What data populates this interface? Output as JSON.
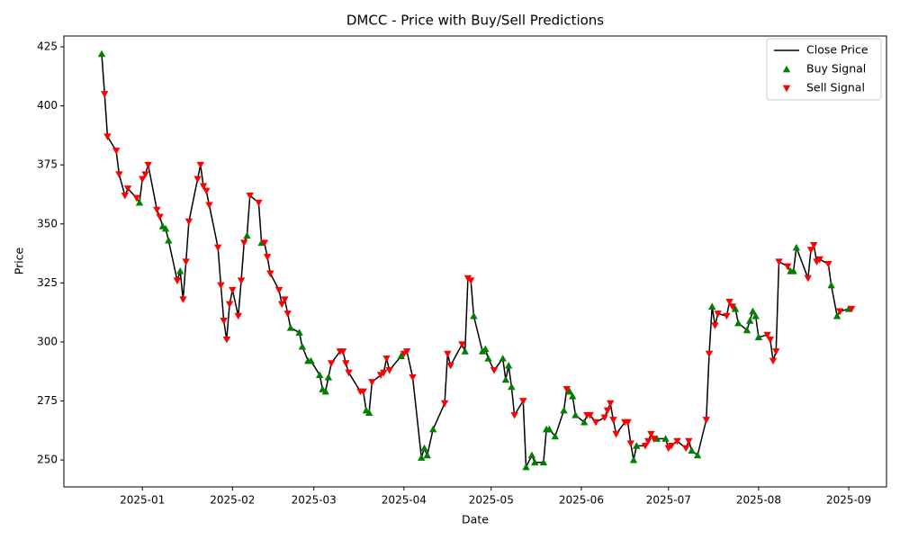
{
  "chart_data": {
    "type": "line",
    "title": "DMCC - Price with Buy/Sell Predictions",
    "x_label": "Date",
    "y_label": "Price",
    "x": [
      "2024-12-18",
      "2024-12-19",
      "2024-12-20",
      "2024-12-23",
      "2024-12-24",
      "2024-12-26",
      "2024-12-27",
      "2024-12-30",
      "2024-12-31",
      "2025-01-01",
      "2025-01-02",
      "2025-01-03",
      "2025-01-06",
      "2025-01-07",
      "2025-01-08",
      "2025-01-09",
      "2025-01-10",
      "2025-01-13",
      "2025-01-14",
      "2025-01-15",
      "2025-01-16",
      "2025-01-17",
      "2025-01-20",
      "2025-01-21",
      "2025-01-22",
      "2025-01-23",
      "2025-01-24",
      "2025-01-27",
      "2025-01-28",
      "2025-01-29",
      "2025-01-30",
      "2025-01-31",
      "2025-02-01",
      "2025-02-03",
      "2025-02-04",
      "2025-02-05",
      "2025-02-06",
      "2025-02-07",
      "2025-02-10",
      "2025-02-11",
      "2025-02-12",
      "2025-02-13",
      "2025-02-14",
      "2025-02-17",
      "2025-02-18",
      "2025-02-19",
      "2025-02-20",
      "2025-02-21",
      "2025-02-24",
      "2025-02-25",
      "2025-02-27",
      "2025-02-28",
      "2025-03-03",
      "2025-03-04",
      "2025-03-05",
      "2025-03-06",
      "2025-03-07",
      "2025-03-10",
      "2025-03-11",
      "2025-03-12",
      "2025-03-13",
      "2025-03-17",
      "2025-03-18",
      "2025-03-19",
      "2025-03-20",
      "2025-03-21",
      "2025-03-24",
      "2025-03-25",
      "2025-03-26",
      "2025-03-27",
      "2025-03-31",
      "2025-04-01",
      "2025-04-02",
      "2025-04-04",
      "2025-04-07",
      "2025-04-08",
      "2025-04-09",
      "2025-04-11",
      "2025-04-15",
      "2025-04-16",
      "2025-04-17",
      "2025-04-21",
      "2025-04-22",
      "2025-04-23",
      "2025-04-24",
      "2025-04-25",
      "2025-04-28",
      "2025-04-29",
      "2025-04-30",
      "2025-05-02",
      "2025-05-05",
      "2025-05-06",
      "2025-05-07",
      "2025-05-08",
      "2025-05-09",
      "2025-05-12",
      "2025-05-13",
      "2025-05-15",
      "2025-05-16",
      "2025-05-19",
      "2025-05-20",
      "2025-05-21",
      "2025-05-23",
      "2025-05-26",
      "2025-05-27",
      "2025-05-28",
      "2025-05-29",
      "2025-05-30",
      "2025-06-02",
      "2025-06-03",
      "2025-06-04",
      "2025-06-06",
      "2025-06-09",
      "2025-06-10",
      "2025-06-11",
      "2025-06-12",
      "2025-06-13",
      "2025-06-16",
      "2025-06-17",
      "2025-06-18",
      "2025-06-19",
      "2025-06-20",
      "2025-06-23",
      "2025-06-24",
      "2025-06-25",
      "2025-06-26",
      "2025-06-27",
      "2025-06-30",
      "2025-07-01",
      "2025-07-02",
      "2025-07-04",
      "2025-07-07",
      "2025-07-08",
      "2025-07-09",
      "2025-07-11",
      "2025-07-14",
      "2025-07-15",
      "2025-07-16",
      "2025-07-17",
      "2025-07-18",
      "2025-07-21",
      "2025-07-22",
      "2025-07-23",
      "2025-07-24",
      "2025-07-25",
      "2025-07-28",
      "2025-07-29",
      "2025-07-30",
      "2025-07-31",
      "2025-08-01",
      "2025-08-04",
      "2025-08-05",
      "2025-08-06",
      "2025-08-07",
      "2025-08-08",
      "2025-08-11",
      "2025-08-12",
      "2025-08-13",
      "2025-08-14",
      "2025-08-18",
      "2025-08-19",
      "2025-08-20",
      "2025-08-21",
      "2025-08-22",
      "2025-08-25",
      "2025-08-26",
      "2025-08-28",
      "2025-08-29",
      "2025-09-01",
      "2025-09-02"
    ],
    "series": [
      {
        "name": "Close Price",
        "type": "line",
        "color": "#000000",
        "values": [
          422,
          405,
          387,
          381,
          371,
          362,
          365,
          361,
          359,
          369,
          371,
          375,
          356,
          353,
          349,
          348,
          343,
          326,
          330,
          318,
          334,
          351,
          369,
          375,
          366,
          364,
          358,
          340,
          324,
          309,
          301,
          316,
          322,
          311,
          326,
          342,
          345,
          362,
          359,
          342,
          342,
          336,
          329,
          322,
          316,
          318,
          312,
          306,
          304,
          298,
          292,
          292,
          286,
          280,
          279,
          285,
          291,
          296,
          296,
          291,
          287,
          279,
          279,
          271,
          270,
          283,
          286,
          287,
          293,
          288,
          294,
          295,
          296,
          285,
          251,
          255,
          252,
          263,
          274,
          295,
          290,
          299,
          296,
          327,
          326,
          311,
          296,
          297,
          293,
          288,
          293,
          284,
          290,
          281,
          269,
          275,
          247,
          252,
          249,
          249,
          263,
          263,
          260,
          271,
          280,
          279,
          277,
          269,
          266,
          269,
          269,
          266,
          268,
          271,
          274,
          267,
          261,
          266,
          266,
          257,
          250,
          256,
          256,
          258,
          261,
          259,
          259,
          259,
          255,
          256,
          258,
          255,
          258,
          254,
          252,
          267,
          295,
          315,
          307,
          312,
          311,
          317,
          315,
          314,
          308,
          305,
          309,
          313,
          311,
          302,
          303,
          301,
          292,
          296,
          334,
          332,
          330,
          330,
          340,
          327,
          339,
          341,
          334,
          335,
          333,
          324,
          311,
          313,
          314,
          314
        ]
      },
      {
        "name": "Buy Signal",
        "type": "scatter",
        "marker": "triangle-up",
        "color": "#008000",
        "values": [
          422,
          null,
          null,
          null,
          null,
          null,
          null,
          null,
          359,
          null,
          null,
          null,
          null,
          null,
          349,
          348,
          343,
          null,
          330,
          null,
          null,
          null,
          null,
          null,
          null,
          null,
          null,
          null,
          null,
          null,
          null,
          null,
          null,
          null,
          null,
          null,
          345,
          null,
          null,
          342,
          null,
          null,
          null,
          null,
          null,
          null,
          null,
          306,
          304,
          298,
          292,
          292,
          286,
          280,
          279,
          285,
          null,
          null,
          null,
          null,
          null,
          null,
          null,
          271,
          270,
          null,
          null,
          null,
          null,
          null,
          294,
          null,
          null,
          null,
          251,
          255,
          252,
          263,
          null,
          null,
          null,
          null,
          296,
          null,
          null,
          311,
          296,
          297,
          293,
          null,
          293,
          284,
          290,
          281,
          null,
          null,
          247,
          252,
          249,
          249,
          263,
          263,
          260,
          271,
          null,
          279,
          277,
          269,
          266,
          null,
          null,
          null,
          null,
          null,
          null,
          null,
          null,
          null,
          null,
          null,
          250,
          256,
          null,
          null,
          null,
          null,
          259,
          259,
          null,
          null,
          null,
          null,
          null,
          254,
          252,
          null,
          null,
          315,
          null,
          null,
          null,
          null,
          null,
          314,
          308,
          305,
          309,
          313,
          311,
          302,
          null,
          null,
          null,
          null,
          null,
          null,
          330,
          330,
          340,
          null,
          null,
          null,
          null,
          null,
          null,
          324,
          311,
          null,
          314,
          null
        ]
      },
      {
        "name": "Sell Signal",
        "type": "scatter",
        "marker": "triangle-down",
        "color": "#ff0000",
        "values": [
          null,
          405,
          387,
          381,
          371,
          362,
          365,
          361,
          null,
          369,
          371,
          375,
          356,
          353,
          null,
          null,
          null,
          326,
          null,
          318,
          334,
          351,
          369,
          375,
          366,
          364,
          358,
          340,
          324,
          309,
          301,
          316,
          322,
          311,
          326,
          342,
          null,
          362,
          359,
          null,
          342,
          336,
          329,
          322,
          316,
          318,
          312,
          null,
          null,
          null,
          null,
          null,
          null,
          null,
          null,
          null,
          291,
          296,
          296,
          291,
          287,
          279,
          279,
          null,
          null,
          283,
          286,
          287,
          293,
          288,
          null,
          295,
          296,
          285,
          null,
          null,
          null,
          null,
          274,
          295,
          290,
          299,
          null,
          327,
          326,
          null,
          null,
          null,
          null,
          288,
          null,
          null,
          null,
          null,
          269,
          275,
          null,
          null,
          null,
          null,
          null,
          null,
          null,
          null,
          280,
          null,
          null,
          null,
          null,
          269,
          269,
          266,
          268,
          271,
          274,
          267,
          261,
          266,
          266,
          257,
          null,
          null,
          256,
          258,
          261,
          259,
          null,
          null,
          255,
          256,
          258,
          255,
          258,
          null,
          null,
          267,
          295,
          null,
          307,
          312,
          311,
          317,
          315,
          null,
          null,
          null,
          null,
          null,
          null,
          null,
          303,
          301,
          292,
          296,
          334,
          332,
          null,
          null,
          null,
          327,
          339,
          341,
          334,
          335,
          333,
          null,
          null,
          313,
          null,
          314
        ]
      }
    ],
    "xlim": [
      "2024-12-05",
      "2025-09-14"
    ],
    "xticks": [
      {
        "value": "2025-01-01",
        "label": "2025-01"
      },
      {
        "value": "2025-02-01",
        "label": "2025-02"
      },
      {
        "value": "2025-03-01",
        "label": "2025-03"
      },
      {
        "value": "2025-04-01",
        "label": "2025-04"
      },
      {
        "value": "2025-05-01",
        "label": "2025-05"
      },
      {
        "value": "2025-06-01",
        "label": "2025-06"
      },
      {
        "value": "2025-07-01",
        "label": "2025-07"
      },
      {
        "value": "2025-08-01",
        "label": "2025-08"
      },
      {
        "value": "2025-09-01",
        "label": "2025-09"
      }
    ],
    "ylim": [
      238.6,
      429.6
    ],
    "yticks": [
      250,
      275,
      300,
      325,
      350,
      375,
      400,
      425
    ],
    "grid": false,
    "legend": "upper right"
  }
}
